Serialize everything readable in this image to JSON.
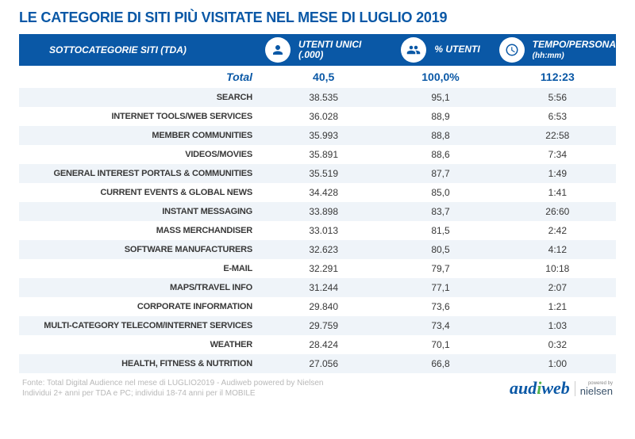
{
  "title": "LE CATEGORIE DI SITI PIÙ VISITATE NEL MESE DI LUGLIO 2019",
  "header": {
    "category": "SOTTOCATEGORIE SITI  (TDA)",
    "col1": "UTENTI UNICI (.000)",
    "col2": "% UTENTI",
    "col3": "TEMPO/PERSONA",
    "col3_sub": "(hh:mm)"
  },
  "total": {
    "label": "Total",
    "users": "40,5",
    "percent": "100,0%",
    "time": "112:23"
  },
  "rows": [
    {
      "cat": "SEARCH",
      "users": "38.535",
      "pct": "95,1",
      "time": "5:56"
    },
    {
      "cat": "INTERNET TOOLS/WEB SERVICES",
      "users": "36.028",
      "pct": "88,9",
      "time": "6:53"
    },
    {
      "cat": "MEMBER COMMUNITIES",
      "users": "35.993",
      "pct": "88,8",
      "time": "22:58"
    },
    {
      "cat": "VIDEOS/MOVIES",
      "users": "35.891",
      "pct": "88,6",
      "time": "7:34"
    },
    {
      "cat": "GENERAL INTEREST PORTALS & COMMUNITIES",
      "users": "35.519",
      "pct": "87,7",
      "time": "1:49"
    },
    {
      "cat": "CURRENT EVENTS & GLOBAL NEWS",
      "users": "34.428",
      "pct": "85,0",
      "time": "1:41"
    },
    {
      "cat": "INSTANT MESSAGING",
      "users": "33.898",
      "pct": "83,7",
      "time": "26:60"
    },
    {
      "cat": "MASS MERCHANDISER",
      "users": "33.013",
      "pct": "81,5",
      "time": "2:42"
    },
    {
      "cat": "SOFTWARE MANUFACTURERS",
      "users": "32.623",
      "pct": "80,5",
      "time": "4:12"
    },
    {
      "cat": "E-MAIL",
      "users": "32.291",
      "pct": "79,7",
      "time": "10:18"
    },
    {
      "cat": "MAPS/TRAVEL INFO",
      "users": "31.244",
      "pct": "77,1",
      "time": "2:07"
    },
    {
      "cat": "CORPORATE INFORMATION",
      "users": "29.840",
      "pct": "73,6",
      "time": "1:21"
    },
    {
      "cat": "MULTI-CATEGORY TELECOM/INTERNET SERVICES",
      "users": "29.759",
      "pct": "73,4",
      "time": "1:03"
    },
    {
      "cat": "WEATHER",
      "users": "28.424",
      "pct": "70,1",
      "time": "0:32"
    },
    {
      "cat": "HEALTH, FITNESS & NUTRITION",
      "users": "27.056",
      "pct": "66,8",
      "time": "1:00"
    }
  ],
  "source": {
    "line1": "Fonte: Total Digital Audience nel mese di LUGLIO2019 - Audiweb powered by Nielsen",
    "line2": "Individui 2+ anni per TDA e PC; individui 18-74 anni per il MOBILE"
  },
  "logos": {
    "audiweb": "audiweb",
    "nielsen": "nielsen",
    "powered": "powered by"
  },
  "colors": {
    "brand": "#0a58a6",
    "stripe": "#eff4f9",
    "text": "#383838",
    "muted": "#b9b9b9"
  }
}
